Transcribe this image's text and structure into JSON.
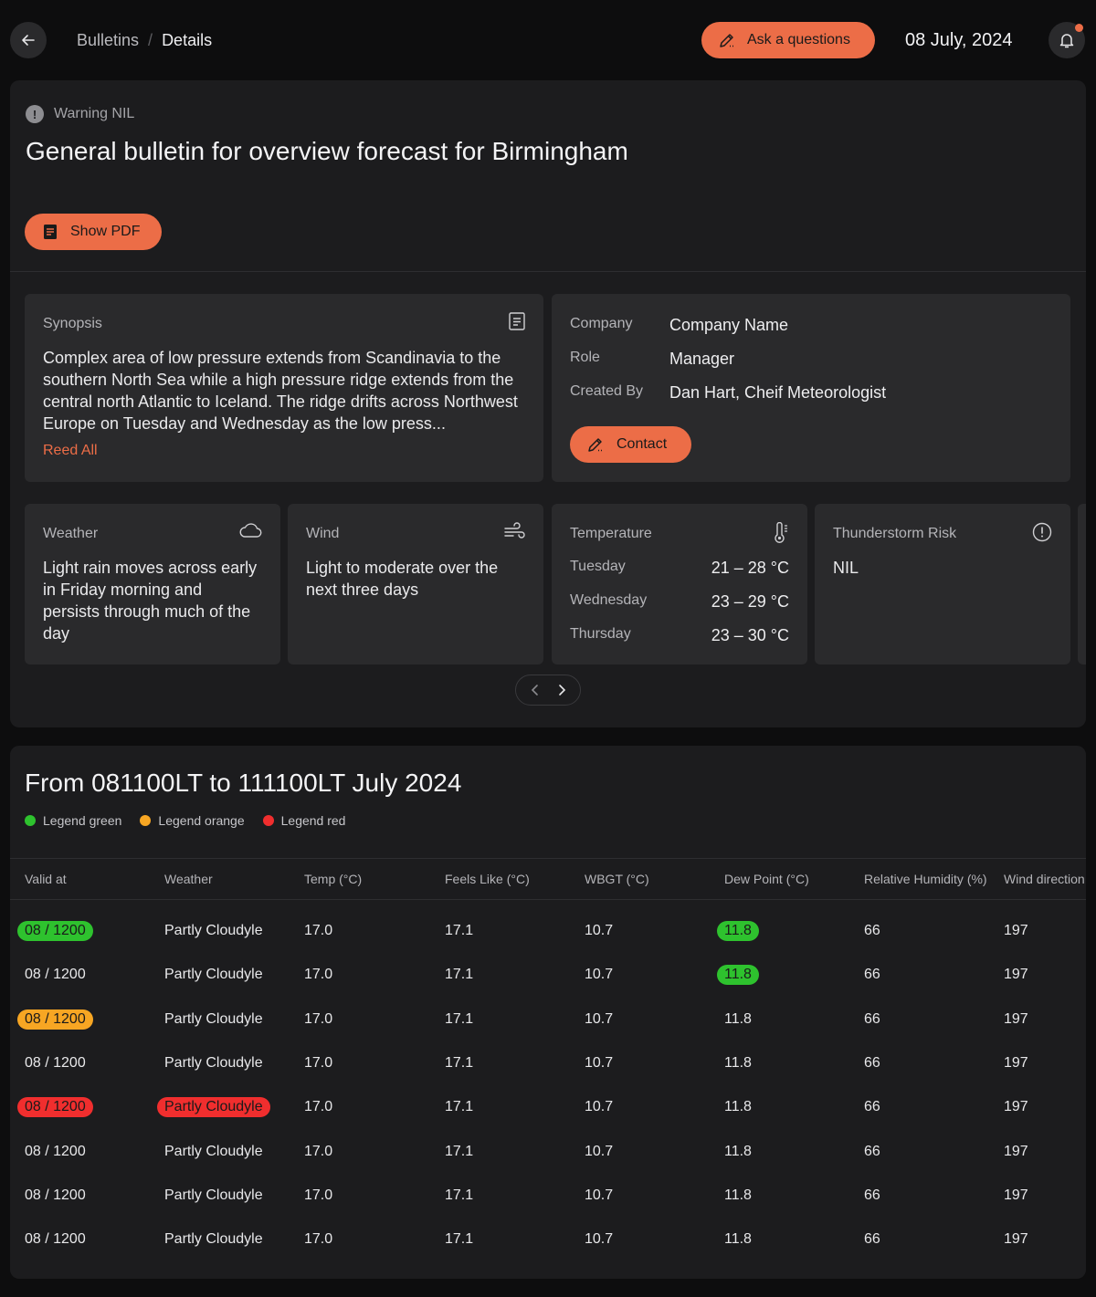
{
  "breadcrumb": {
    "parent": "Bulletins",
    "separator": "/",
    "current": "Details"
  },
  "header": {
    "ask_label": "Ask a questions",
    "date": "08 July, 2024"
  },
  "bulletin": {
    "warning": "Warning NIL",
    "title": "General bulletin for overview forecast for Birmingham",
    "pdf_label": "Show PDF"
  },
  "synopsis": {
    "label": "Synopsis",
    "text": "Complex area of low pressure extends from Scandinavia to the southern North Sea while a high pressure ridge extends from the central north Atlantic to Iceland. The ridge drifts across Northwest Europe on Tuesday and Wednesday as the low press...",
    "read_all": "Reed All"
  },
  "info": {
    "company_key": "Company",
    "company_val": "Company Name",
    "role_key": "Role",
    "role_val": "Manager",
    "created_key": "Created By",
    "created_val": "Dan Hart, Cheif Meteorologist",
    "contact_label": "Contact"
  },
  "cards": {
    "weather": {
      "label": "Weather",
      "text": "Light rain moves across early in Friday morning and persists through much of the day",
      "icon": "cloud-icon"
    },
    "wind": {
      "label": "Wind",
      "text": "Light to moderate over the next three days",
      "icon": "wind-icon"
    },
    "temperature": {
      "label": "Temperature",
      "icon": "thermometer-icon",
      "rows": [
        {
          "day": "Tuesday",
          "range": "21 – 28 °C"
        },
        {
          "day": "Wednesday",
          "range": "23 – 29 °C"
        },
        {
          "day": "Thursday",
          "range": "23 – 30 °C"
        }
      ]
    },
    "thunder": {
      "label": "Thunderstorm Risk",
      "text": "NIL",
      "icon": "alert-circle-icon"
    }
  },
  "forecast": {
    "title": "From 081100LT to 111100LT July 2024",
    "legend": [
      {
        "label": "Legend green",
        "color": "#2ec22e"
      },
      {
        "label": "Legend orange",
        "color": "#f7a623"
      },
      {
        "label": "Legend red",
        "color": "#f02e2e"
      }
    ],
    "columns": [
      "Valid at",
      "Weather",
      "Temp (°C)",
      "Feels Like (°C)",
      "WBGT (°C)",
      "Dew Point (°C)",
      "Relative Humidity (%)",
      "Wind direction"
    ],
    "rows": [
      [
        "08 / 1200",
        "Partly Cloudyle",
        "17.0",
        "17.1",
        "10.7",
        "11.8",
        "66",
        "197"
      ],
      [
        "08 / 1200",
        "Partly Cloudyle",
        "17.0",
        "17.1",
        "10.7",
        "11.8",
        "66",
        "197"
      ],
      [
        "08 / 1200",
        "Partly Cloudyle",
        "17.0",
        "17.1",
        "10.7",
        "11.8",
        "66",
        "197"
      ],
      [
        "08 / 1200",
        "Partly Cloudyle",
        "17.0",
        "17.1",
        "10.7",
        "11.8",
        "66",
        "197"
      ],
      [
        "08 / 1200",
        "Partly Cloudyle",
        "17.0",
        "17.1",
        "10.7",
        "11.8",
        "66",
        "197"
      ],
      [
        "08 / 1200",
        "Partly Cloudyle",
        "17.0",
        "17.1",
        "10.7",
        "11.8",
        "66",
        "197"
      ],
      [
        "08 / 1200",
        "Partly Cloudyle",
        "17.0",
        "17.1",
        "10.7",
        "11.8",
        "66",
        "197"
      ],
      [
        "08 / 1200",
        "Partly Cloudyle",
        "17.0",
        "17.1",
        "10.7",
        "11.8",
        "66",
        "197"
      ]
    ],
    "highlights": [
      {
        "row": 0,
        "col": 0,
        "status": "green"
      },
      {
        "row": 0,
        "col": 5,
        "status": "green"
      },
      {
        "row": 1,
        "col": 5,
        "status": "green"
      },
      {
        "row": 2,
        "col": 0,
        "status": "orange"
      },
      {
        "row": 4,
        "col": 0,
        "status": "red"
      },
      {
        "row": 4,
        "col": 1,
        "status": "red"
      }
    ]
  }
}
